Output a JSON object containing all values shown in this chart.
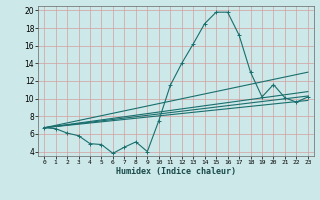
{
  "xlabel": "Humidex (Indice chaleur)",
  "bg_color": "#cce8e8",
  "grid_color": "#d4a0a0",
  "line_color": "#1a6e6e",
  "xlim": [
    -0.5,
    23.5
  ],
  "ylim": [
    3.5,
    20.5
  ],
  "xticks": [
    0,
    1,
    2,
    3,
    4,
    5,
    6,
    7,
    8,
    9,
    10,
    11,
    12,
    13,
    14,
    15,
    16,
    17,
    18,
    19,
    20,
    21,
    22,
    23
  ],
  "yticks": [
    4,
    6,
    8,
    10,
    12,
    14,
    16,
    18,
    20
  ],
  "line1_x": [
    0,
    1,
    2,
    3,
    4,
    5,
    6,
    7,
    8,
    9,
    10,
    11,
    12,
    13,
    14,
    15,
    16,
    17,
    18,
    19,
    20,
    21,
    22,
    23
  ],
  "line1_y": [
    6.7,
    6.6,
    6.1,
    5.8,
    4.9,
    4.8,
    3.8,
    4.5,
    5.1,
    4.0,
    7.5,
    11.5,
    14.0,
    16.2,
    18.5,
    19.8,
    19.8,
    17.2,
    13.0,
    10.2,
    11.6,
    10.1,
    9.6,
    10.2
  ],
  "trend_lines": [
    [
      [
        0,
        23
      ],
      [
        6.7,
        13.0
      ]
    ],
    [
      [
        0,
        23
      ],
      [
        6.7,
        10.8
      ]
    ],
    [
      [
        0,
        23
      ],
      [
        6.7,
        10.3
      ]
    ],
    [
      [
        0,
        23
      ],
      [
        6.7,
        9.8
      ]
    ]
  ]
}
